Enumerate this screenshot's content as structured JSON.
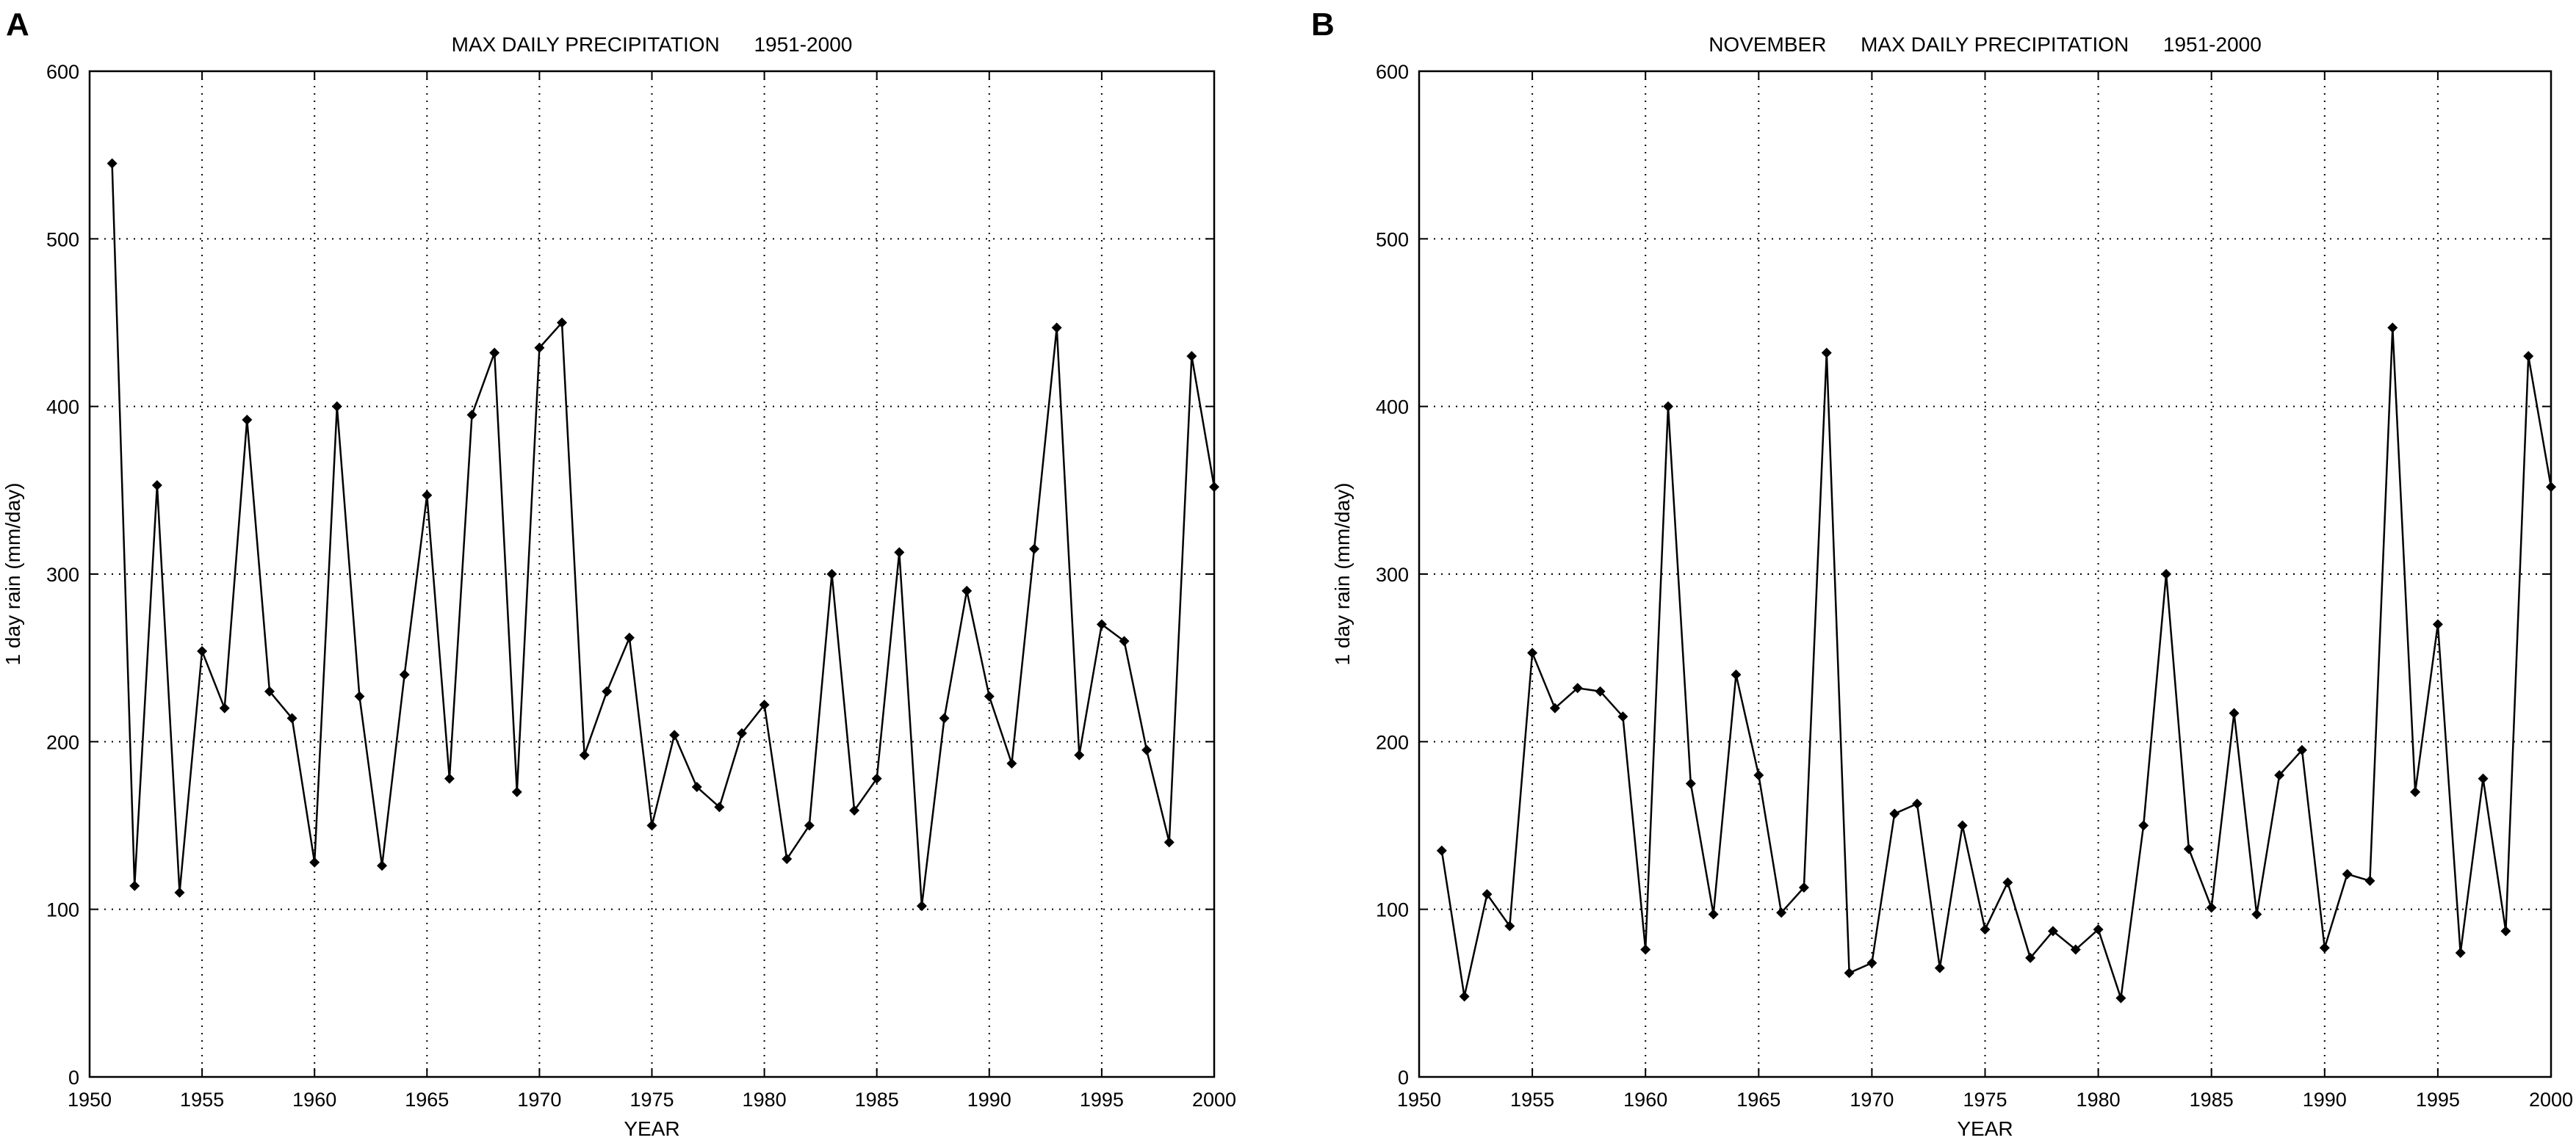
{
  "chart_data": [
    {
      "panel_letter": "A",
      "type": "line",
      "title": "MAX DAILY PRECIPITATION      1951-2000",
      "xlabel": "YEAR",
      "ylabel": "1 day rain (mm/day)",
      "xlim": [
        1950,
        2000
      ],
      "ylim": [
        0,
        600
      ],
      "xticks": [
        1950,
        1955,
        1960,
        1965,
        1970,
        1975,
        1980,
        1985,
        1990,
        1995,
        2000
      ],
      "yticks": [
        0,
        100,
        200,
        300,
        400,
        500,
        600
      ],
      "grid": true,
      "marker": "diamond",
      "series": [
        {
          "x": [
            1951,
            1952,
            1953,
            1954,
            1955,
            1956,
            1957,
            1958,
            1959,
            1960,
            1961,
            1962,
            1963,
            1964,
            1965,
            1966,
            1967,
            1968,
            1969,
            1970,
            1971,
            1972,
            1973,
            1974,
            1975,
            1976,
            1977,
            1978,
            1979,
            1980,
            1981,
            1982,
            1983,
            1984,
            1985,
            1986,
            1987,
            1988,
            1989,
            1990,
            1991,
            1992,
            1993,
            1994,
            1995,
            1996,
            1997,
            1998,
            1999,
            2000
          ],
          "y": [
            545,
            114,
            353,
            110,
            254,
            220,
            392,
            230,
            214,
            128,
            400,
            227,
            126,
            240,
            347,
            178,
            395,
            432,
            170,
            435,
            450,
            192,
            230,
            262,
            150,
            204,
            173,
            161,
            205,
            222,
            130,
            150,
            300,
            159,
            178,
            313,
            102,
            214,
            290,
            227,
            187,
            315,
            447,
            192,
            270,
            260,
            195,
            140,
            430,
            352
          ]
        }
      ]
    },
    {
      "panel_letter": "B",
      "type": "line",
      "title": "NOVEMBER      MAX DAILY PRECIPITATION      1951-2000",
      "xlabel": "YEAR",
      "ylabel": "1 day rain (mm/day)",
      "xlim": [
        1950,
        2000
      ],
      "ylim": [
        0,
        600
      ],
      "xticks": [
        1950,
        1955,
        1960,
        1965,
        1970,
        1975,
        1980,
        1985,
        1990,
        1995,
        2000
      ],
      "yticks": [
        0,
        100,
        200,
        300,
        400,
        500,
        600
      ],
      "grid": true,
      "marker": "diamond",
      "series": [
        {
          "x": [
            1951,
            1952,
            1953,
            1954,
            1955,
            1956,
            1957,
            1958,
            1959,
            1960,
            1961,
            1962,
            1963,
            1964,
            1965,
            1966,
            1967,
            1968,
            1969,
            1970,
            1971,
            1972,
            1973,
            1974,
            1975,
            1976,
            1977,
            1978,
            1979,
            1980,
            1981,
            1982,
            1983,
            1984,
            1985,
            1986,
            1987,
            1988,
            1989,
            1990,
            1991,
            1992,
            1993,
            1994,
            1995,
            1996,
            1997,
            1998,
            1999,
            2000
          ],
          "y": [
            135,
            48,
            109,
            90,
            253,
            220,
            232,
            230,
            215,
            76,
            400,
            175,
            97,
            240,
            180,
            98,
            113,
            432,
            62,
            68,
            157,
            163,
            65,
            150,
            88,
            116,
            71,
            87,
            76,
            88,
            47,
            150,
            300,
            136,
            101,
            217,
            97,
            180,
            195,
            77,
            121,
            117,
            447,
            170,
            270,
            74,
            178,
            87,
            430,
            352
          ]
        }
      ]
    }
  ]
}
